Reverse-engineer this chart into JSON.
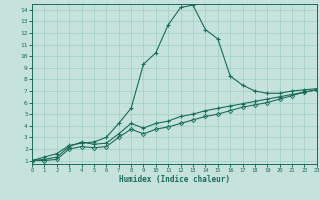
{
  "xlabel": "Humidex (Indice chaleur)",
  "bg_color": "#c5e3dc",
  "line_color": "#1a6b5a",
  "grid_color": "#9ecfc5",
  "xlim": [
    0,
    23
  ],
  "ylim": [
    0.7,
    14.5
  ],
  "xticks": [
    0,
    1,
    2,
    3,
    4,
    5,
    6,
    7,
    8,
    9,
    10,
    11,
    12,
    13,
    14,
    15,
    16,
    17,
    18,
    19,
    20,
    21,
    22,
    23
  ],
  "yticks": [
    1,
    2,
    3,
    4,
    5,
    6,
    7,
    8,
    9,
    10,
    11,
    12,
    13,
    14
  ],
  "series1_x": [
    0,
    1,
    2,
    3,
    4,
    5,
    6,
    7,
    8,
    9,
    10,
    11,
    12,
    13,
    14,
    15,
    16,
    17,
    18,
    19,
    20,
    21,
    22,
    23
  ],
  "series1_y": [
    1.0,
    1.3,
    1.6,
    2.3,
    2.5,
    2.6,
    3.0,
    4.2,
    5.5,
    9.3,
    10.3,
    12.7,
    14.2,
    14.4,
    12.3,
    11.5,
    8.3,
    7.5,
    7.0,
    6.8,
    6.8,
    7.0,
    7.1,
    7.2
  ],
  "series2_x": [
    0,
    1,
    2,
    3,
    4,
    5,
    6,
    7,
    8,
    9,
    10,
    11,
    12,
    13,
    14,
    15,
    16,
    17,
    18,
    19,
    20,
    21,
    22,
    23
  ],
  "series2_y": [
    1.0,
    1.1,
    1.3,
    2.2,
    2.6,
    2.4,
    2.5,
    3.3,
    4.2,
    3.8,
    4.2,
    4.4,
    4.8,
    5.0,
    5.3,
    5.5,
    5.7,
    5.9,
    6.1,
    6.3,
    6.5,
    6.7,
    6.9,
    7.1
  ],
  "series3_x": [
    0,
    1,
    2,
    3,
    4,
    5,
    6,
    7,
    8,
    9,
    10,
    11,
    12,
    13,
    14,
    15,
    16,
    17,
    18,
    19,
    20,
    21,
    22,
    23
  ],
  "series3_y": [
    1.0,
    1.0,
    1.1,
    2.0,
    2.2,
    2.1,
    2.2,
    3.0,
    3.7,
    3.3,
    3.7,
    3.9,
    4.2,
    4.5,
    4.8,
    5.0,
    5.3,
    5.6,
    5.8,
    6.0,
    6.3,
    6.6,
    6.9,
    7.1
  ]
}
